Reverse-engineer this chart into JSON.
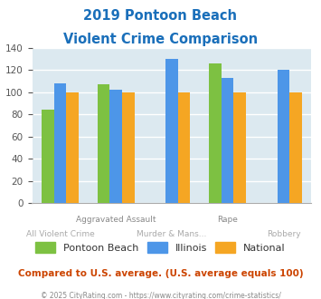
{
  "title_line1": "2019 Pontoon Beach",
  "title_line2": "Violent Crime Comparison",
  "categories": [
    "All Violent Crime",
    "Aggravated Assault",
    "Murder & Mans...",
    "Rape",
    "Robbery"
  ],
  "series": {
    "Pontoon Beach": [
      84,
      107,
      null,
      126,
      null
    ],
    "Illinois": [
      108,
      102,
      130,
      113,
      120
    ],
    "National": [
      100,
      100,
      100,
      100,
      100
    ]
  },
  "colors": {
    "Pontoon Beach": "#7dc142",
    "Illinois": "#4d96e8",
    "National": "#f5a623"
  },
  "ylim": [
    0,
    140
  ],
  "yticks": [
    0,
    20,
    40,
    60,
    80,
    100,
    120,
    140
  ],
  "plot_bg": "#dce9f0",
  "title_color": "#1a6fba",
  "legend_label_color": "#333333",
  "footer_text": "Compared to U.S. average. (U.S. average equals 100)",
  "footer_color": "#cc4400",
  "copyright_text": "© 2025 CityRating.com - https://www.cityrating.com/crime-statistics/",
  "copyright_color": "#888888",
  "grid_color": "#ffffff",
  "bar_width": 0.22,
  "xtick_row1": [
    "",
    "Aggravated Assault",
    "",
    "Rape",
    ""
  ],
  "xtick_row2": [
    "All Violent Crime",
    "",
    "Murder & Mans...",
    "",
    "Robbery"
  ],
  "xtick_row1_color": "#888888",
  "xtick_row2_color": "#aaaaaa"
}
